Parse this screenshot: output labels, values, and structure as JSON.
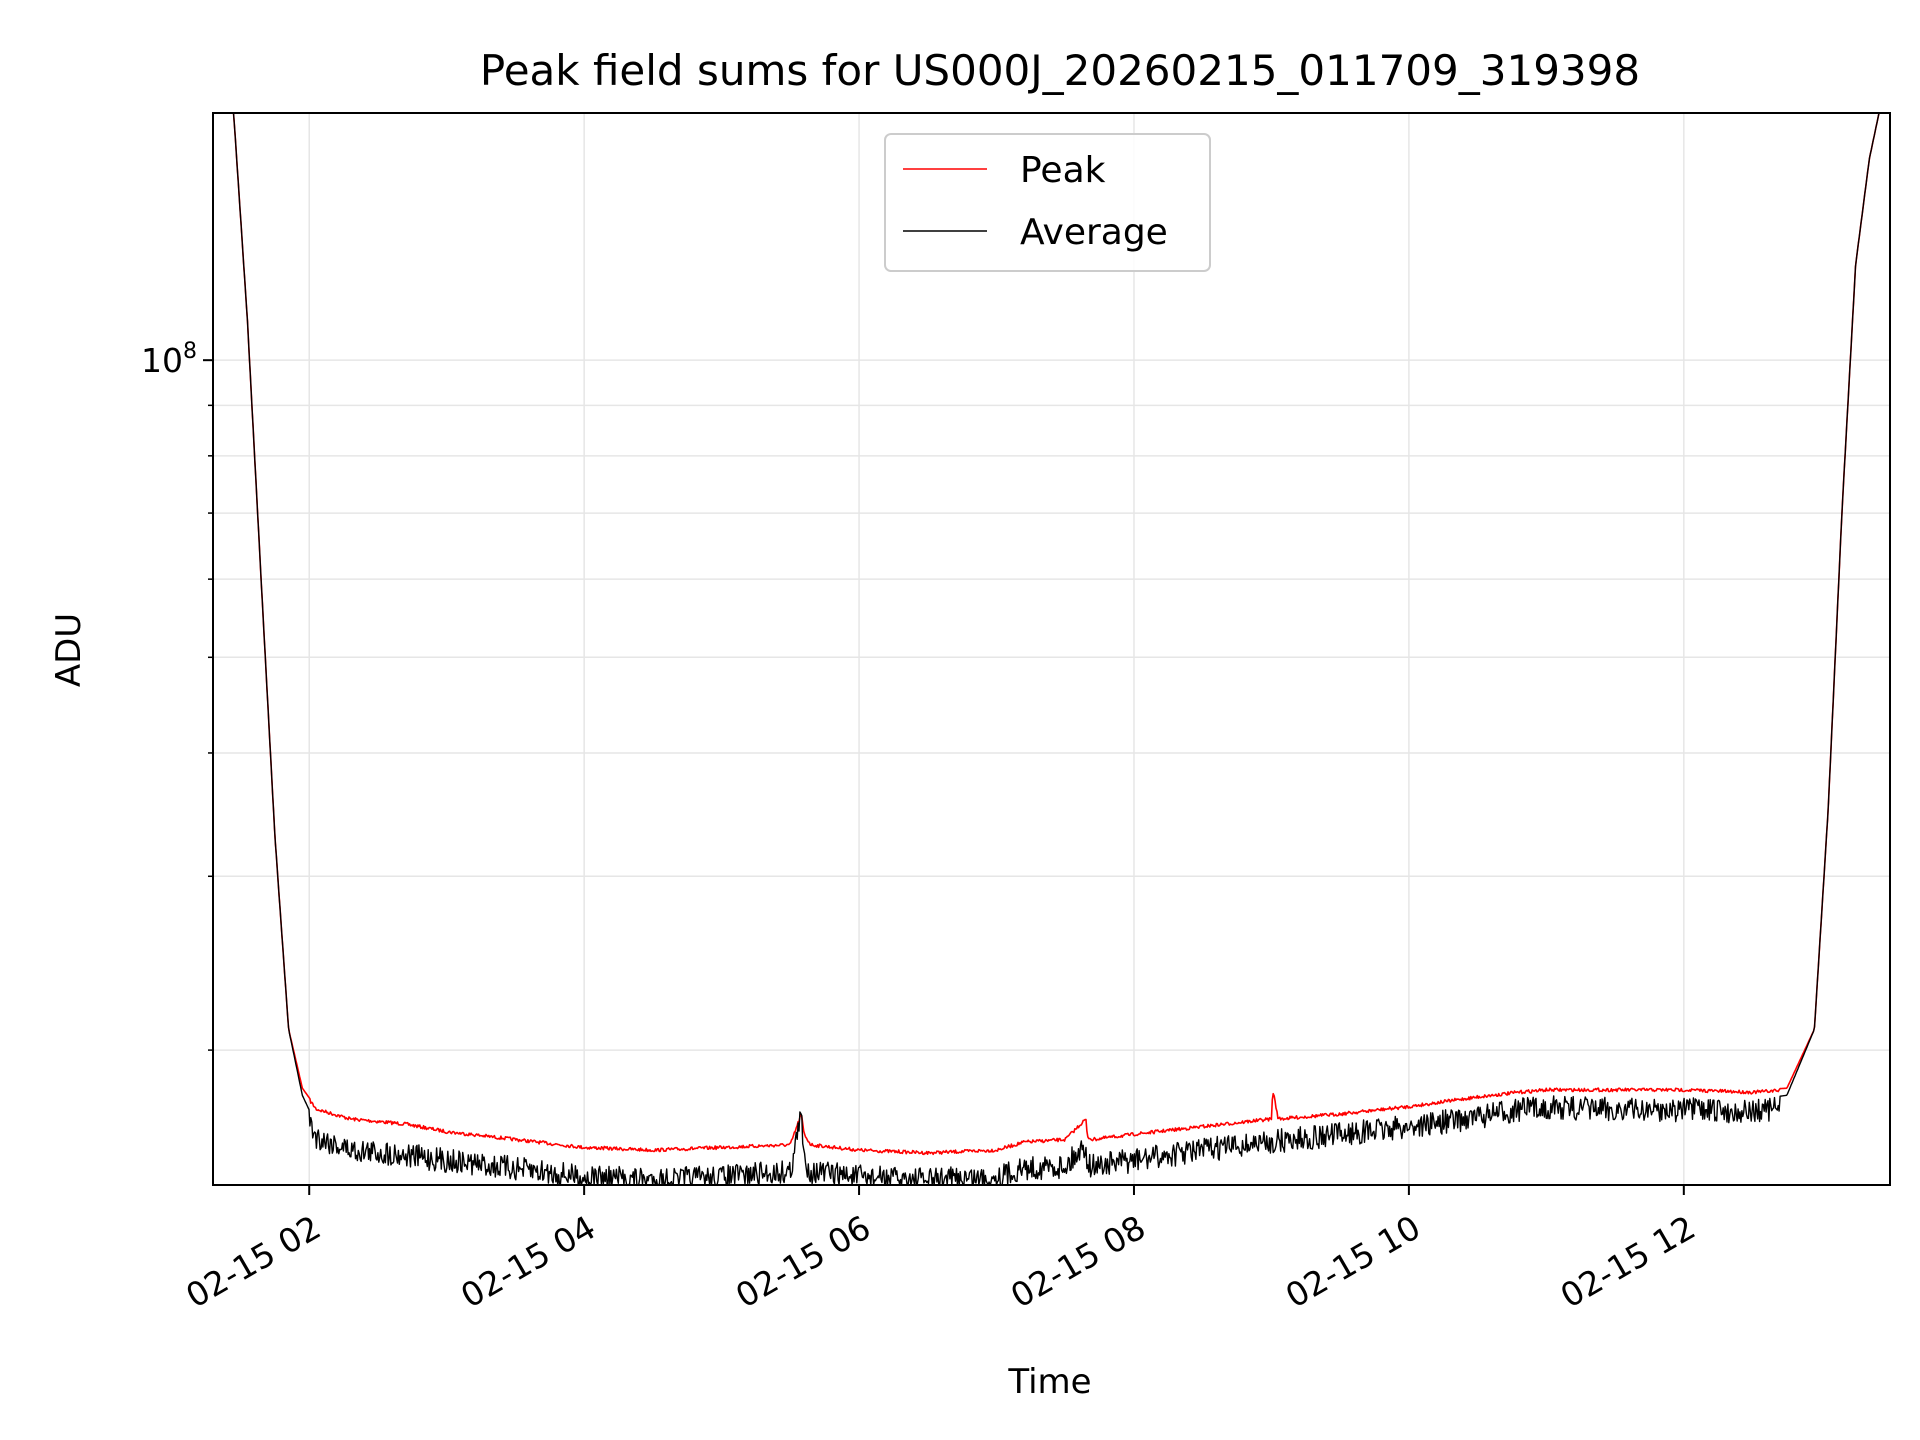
{
  "chart_data": {
    "type": "line",
    "title": "Peak field sums for US000J_20260215_011709_319398",
    "xlabel": "Time",
    "ylabel": "ADU",
    "yscale": "log",
    "grid": true,
    "legend_position": "top-center",
    "x_unit": "hours since 02-15 00:00",
    "xlim": [
      1.3,
      13.5
    ],
    "ylim": [
      14600000,
      178000000
    ],
    "x_ticks": [
      {
        "value": 2,
        "label": "02-15 02"
      },
      {
        "value": 4,
        "label": "02-15 04"
      },
      {
        "value": 6,
        "label": "02-15 06"
      },
      {
        "value": 8,
        "label": "02-15 08"
      },
      {
        "value": 10,
        "label": "02-15 10"
      },
      {
        "value": 12,
        "label": "02-15 12"
      }
    ],
    "y_major_ticks": [
      {
        "value": 100000000,
        "base": "10",
        "exp": "8"
      }
    ],
    "y_minor_ticks": [
      20000000,
      30000000,
      40000000,
      50000000,
      60000000,
      70000000,
      80000000,
      90000000,
      200000000
    ],
    "series": [
      {
        "name": "Peak",
        "color": "#ff0000",
        "x": [
          1.3,
          1.45,
          1.55,
          1.65,
          1.75,
          1.85,
          1.95,
          2.05,
          2.3,
          2.7,
          3.0,
          3.5,
          4.0,
          4.5,
          5.0,
          5.5,
          5.58,
          5.6,
          5.65,
          6.0,
          6.5,
          7.0,
          7.2,
          7.5,
          7.65,
          7.66,
          7.7,
          8.0,
          8.5,
          9.0,
          9.01,
          9.05,
          9.5,
          10.0,
          10.5,
          10.8,
          11.0,
          11.5,
          12.0,
          12.5,
          12.75,
          12.95,
          13.05,
          13.15,
          13.25,
          13.35,
          13.42,
          13.5
        ],
        "y": [
          178000000,
          178000000,
          110000000,
          60000000,
          33000000,
          21000000,
          18300000,
          17500000,
          17100000,
          16900000,
          16600000,
          16300000,
          16000000,
          15900000,
          16000000,
          16100000,
          17300000,
          16500000,
          16100000,
          15900000,
          15800000,
          15900000,
          16200000,
          16300000,
          17100000,
          16400000,
          16300000,
          16500000,
          16800000,
          17100000,
          18300000,
          17100000,
          17300000,
          17600000,
          18000000,
          18200000,
          18300000,
          18300000,
          18300000,
          18200000,
          18300000,
          21000000,
          35000000,
          70000000,
          125000000,
          160000000,
          178000000,
          178000000
        ]
      },
      {
        "name": "Average",
        "color": "#000000",
        "x": [
          1.3,
          1.45,
          1.55,
          1.65,
          1.75,
          1.85,
          1.95,
          2.05,
          2.3,
          2.7,
          3.0,
          3.5,
          4.0,
          4.5,
          5.0,
          5.5,
          5.58,
          5.6,
          5.65,
          6.0,
          6.5,
          7.0,
          7.2,
          7.5,
          7.65,
          7.66,
          7.7,
          8.0,
          8.5,
          9.0,
          9.5,
          10.0,
          10.5,
          10.8,
          11.0,
          11.5,
          12.0,
          12.5,
          12.75,
          12.95,
          13.05,
          13.15,
          13.25,
          13.35,
          13.42,
          13.5
        ],
        "y": [
          178000000,
          178000000,
          110000000,
          60000000,
          33000000,
          21000000,
          18000000,
          16800000,
          16300000,
          16100000,
          15900000,
          15600000,
          15300000,
          15200000,
          15300000,
          15500000,
          17700000,
          15900000,
          15500000,
          15300000,
          15200000,
          15300000,
          15600000,
          15700000,
          16500000,
          15800000,
          15700000,
          15900000,
          16300000,
          16600000,
          16900000,
          17200000,
          17600000,
          17900000,
          18000000,
          17900000,
          17900000,
          17800000,
          18000000,
          21000000,
          35000000,
          70000000,
          125000000,
          160000000,
          178000000,
          178000000
        ]
      }
    ],
    "legend": [
      {
        "name": "Peak",
        "color": "#ff0000"
      },
      {
        "name": "Average",
        "color": "#000000"
      }
    ]
  }
}
